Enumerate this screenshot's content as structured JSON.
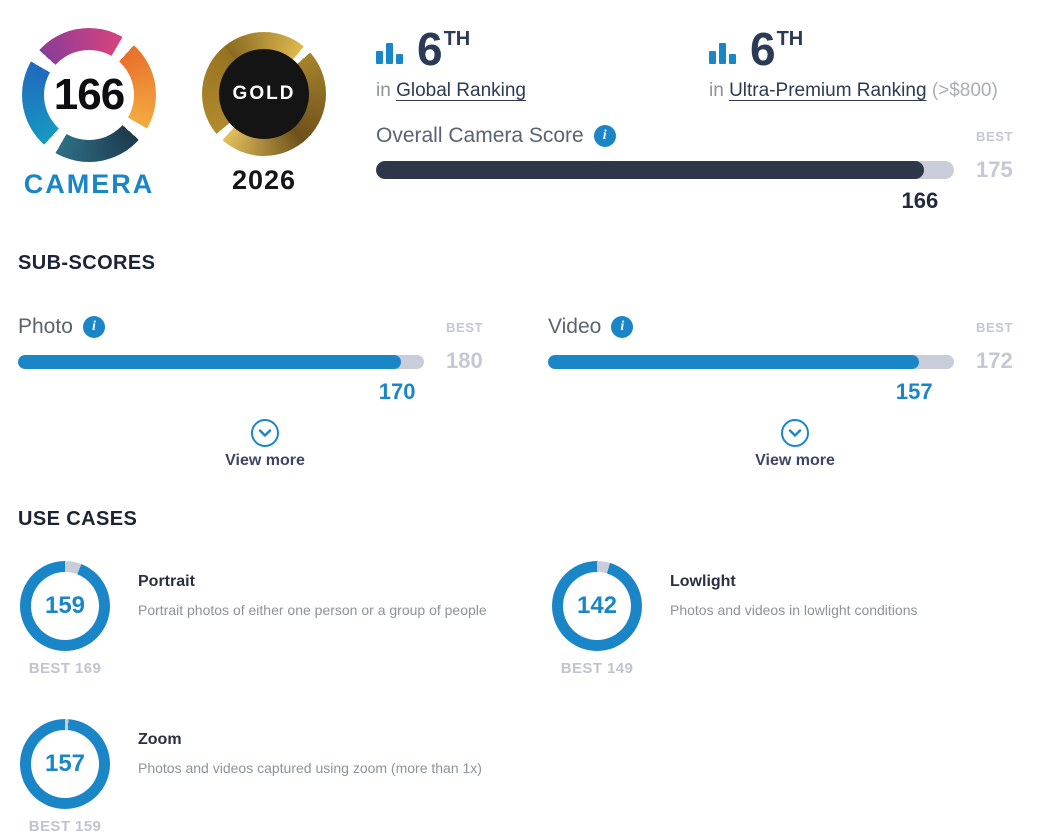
{
  "brand": {
    "score": "166",
    "label": "CAMERA",
    "award_label": "GOLD",
    "award_year": "2026"
  },
  "rankings": [
    {
      "rank": "6",
      "ordinal": "TH",
      "prefix": "in",
      "link": "Global Ranking",
      "suffix": ""
    },
    {
      "rank": "6",
      "ordinal": "TH",
      "prefix": "in",
      "link": "Ultra-Premium Ranking",
      "suffix": "(>$800)"
    }
  ],
  "overall": {
    "label": "Overall Camera Score",
    "best_label": "BEST",
    "best": 175,
    "value": 166
  },
  "subscores": {
    "heading": "SUB-SCORES",
    "view_more_label": "View more",
    "items": [
      {
        "label": "Photo",
        "best_label": "BEST",
        "best": 180,
        "value": 170
      },
      {
        "label": "Video",
        "best_label": "BEST",
        "best": 172,
        "value": 157
      }
    ]
  },
  "use_cases": {
    "heading": "USE CASES",
    "items": [
      {
        "label": "Portrait",
        "value": 159,
        "best": 169,
        "best_text": "BEST 169",
        "description": "Portrait photos of either one person or a group of people"
      },
      {
        "label": "Lowlight",
        "value": 142,
        "best": 149,
        "best_text": "BEST 149",
        "description": "Photos and videos in lowlight conditions"
      },
      {
        "label": "Zoom",
        "value": 157,
        "best": 159,
        "best_text": "BEST 159",
        "description": "Photos and videos captured using zoom (more than 1x)"
      }
    ]
  },
  "colors": {
    "accent": "#1a86c8",
    "dark_bar": "#2e3749",
    "value_dark": "#232a3c",
    "track": "#c9cdda",
    "best_text": "#c3c8d4",
    "label_gray": "#5b6372",
    "heading": "#1b2335",
    "link": "#2c3a52",
    "muted": "#8d929c",
    "view_more": "#3d4566"
  }
}
